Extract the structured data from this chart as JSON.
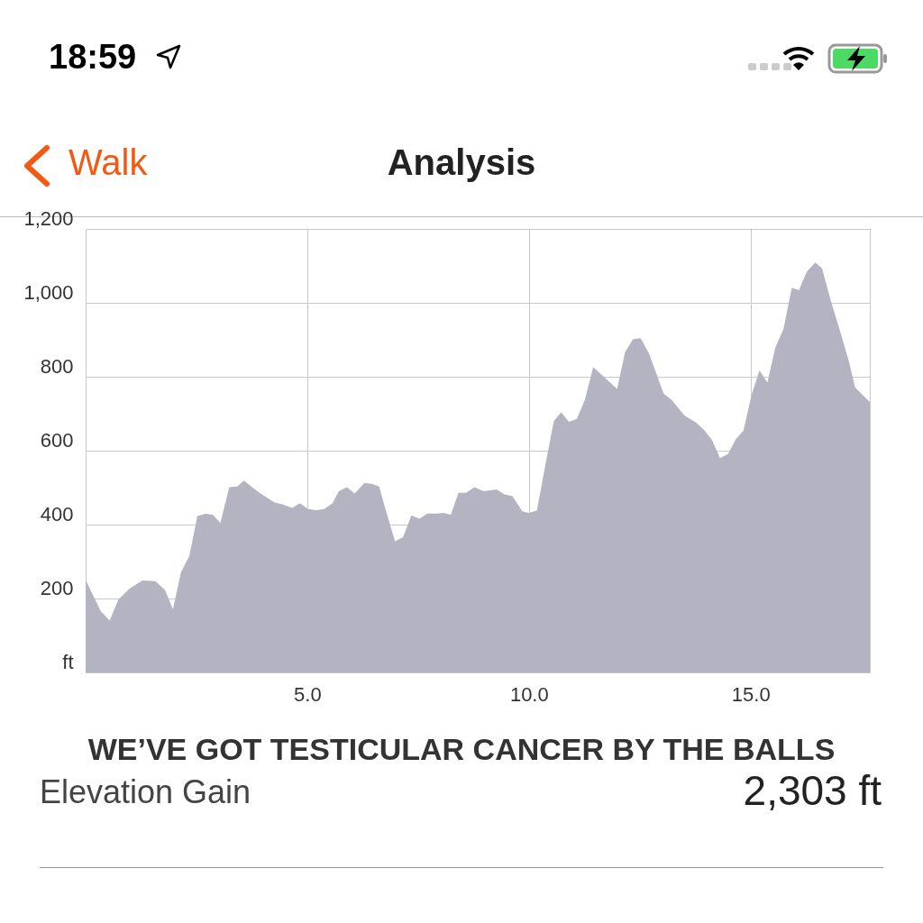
{
  "chart_data": {
    "type": "area",
    "title": "Analysis",
    "ylabel": null,
    "annotations": [
      "18:59",
      "Walk",
      "WE’VE GOT TESTICULAR CANCER BY THE BALLS",
      "Elevation Gain",
      "2,303 ft"
    ],
    "x": [
      0,
      0.34,
      0.54,
      0.74,
      0.99,
      1.28,
      1.57,
      1.79,
      1.97,
      2.15,
      2.34,
      2.52,
      2.7,
      2.87,
      3.04,
      3.24,
      3.42,
      3.57,
      3.9,
      4.26,
      4.44,
      4.66,
      4.83,
      5.02,
      5.2,
      5.38,
      5.57,
      5.71,
      5.89,
      6.07,
      6.29,
      6.47,
      6.62,
      6.8,
      6.98,
      7.16,
      7.35,
      7.53,
      7.71,
      7.93,
      8.07,
      8.24,
      8.41,
      8.58,
      8.77,
      8.98,
      9.27,
      9.45,
      9.63,
      9.85,
      9.99,
      10.18,
      10.36,
      10.56,
      10.73,
      10.9,
      11.08,
      11.26,
      11.45,
      11.7,
      11.99,
      12.17,
      12.35,
      12.52,
      12.71,
      13.04,
      13.22,
      13.51,
      13.77,
      13.95,
      14.13,
      14.31,
      14.49,
      14.67,
      14.84,
      15.02,
      15.2,
      15.38,
      15.56,
      15.74,
      15.93,
      16.09,
      16.27,
      16.46,
      16.61,
      16.82,
      17.03,
      17.22,
      17.36,
      17.69
    ],
    "series": [
      {
        "color": "#b4b3c2",
        "values": [
          250,
          166,
          140,
          197,
          227,
          249,
          247,
          223,
          171,
          271,
          315,
          423,
          429,
          427,
          404,
          501,
          503,
          519,
          488,
          460,
          455,
          445,
          458,
          442,
          439,
          442,
          458,
          490,
          501,
          484,
          513,
          510,
          503,
          427,
          355,
          366,
          425,
          416,
          430,
          430,
          432,
          427,
          486,
          486,
          501,
          490,
          495,
          482,
          477,
          436,
          432,
          438,
          554,
          680,
          704,
          678,
          686,
          737,
          826,
          799,
          767,
          867,
          902,
          904,
          863,
          754,
          737,
          695,
          676,
          656,
          629,
          580,
          591,
          632,
          654,
          750,
          817,
          784,
          880,
          928,
          1041,
          1034,
          1085,
          1109,
          1094,
          1002,
          919,
          841,
          771,
          732
        ]
      }
    ],
    "xlim": [
      0,
      17.69
    ],
    "xticks": [
      {
        "value": 5,
        "label": "5.0"
      },
      {
        "value": 10,
        "label": "10.0"
      },
      {
        "value": 15,
        "label": "15.0"
      }
    ],
    "ylim": [
      0,
      1200
    ],
    "yticks": [
      {
        "value": 0,
        "label": "ft"
      },
      200,
      400,
      600,
      800,
      {
        "value": 1000,
        "label": "1,000"
      },
      {
        "value": 1200,
        "label": "1,200"
      }
    ],
    "grid": true
  }
}
